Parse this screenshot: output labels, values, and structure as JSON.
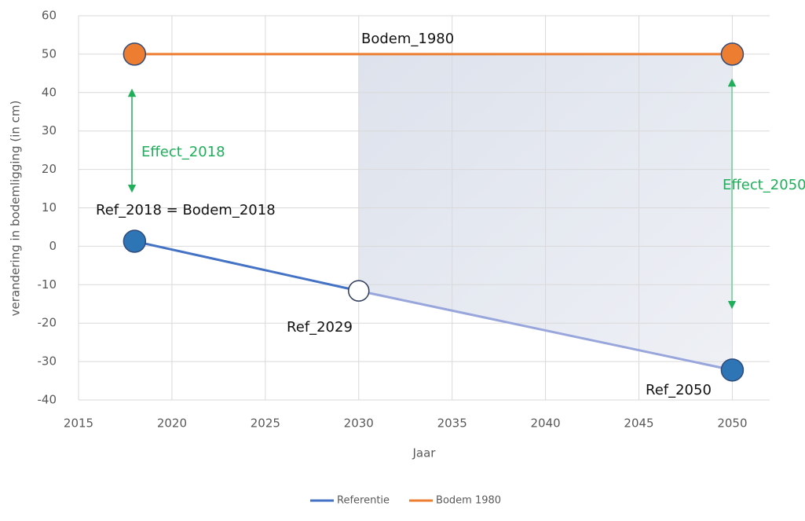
{
  "chart_data": {
    "type": "line",
    "x_label": "Jaar",
    "y_label": "verandering in bodemligging (in cm)",
    "xlim": [
      2015,
      2052
    ],
    "xticks": [
      2015,
      2020,
      2025,
      2030,
      2035,
      2040,
      2045,
      2050
    ],
    "ylim": [
      -40,
      60
    ],
    "yticks": [
      -40,
      -30,
      -20,
      -10,
      0,
      10,
      20,
      30,
      40,
      50,
      60
    ],
    "grid": true,
    "legend": "bottom",
    "series": [
      {
        "name": "Referentie",
        "color": "#4472c4",
        "faded_color": "#98a6dc",
        "x": [
          2018,
          2030,
          2050
        ],
        "values": [
          1.3,
          -11.6,
          -32.2
        ],
        "marker_fill": [
          "#2e75b6",
          "none",
          "#2e75b6"
        ]
      },
      {
        "name": "Bodem 1980",
        "color": "#ed7d31",
        "x": [
          2018,
          2050
        ],
        "values": [
          50,
          50
        ],
        "marker_fill": [
          "#ed7d31",
          "#ed7d31"
        ]
      }
    ],
    "annotations": [
      "Bodem_1980",
      "Effect_2018",
      "Effect_2050",
      "Ref_2018 = Bodem_2018",
      "Ref_2029",
      "Ref_2050"
    ]
  }
}
